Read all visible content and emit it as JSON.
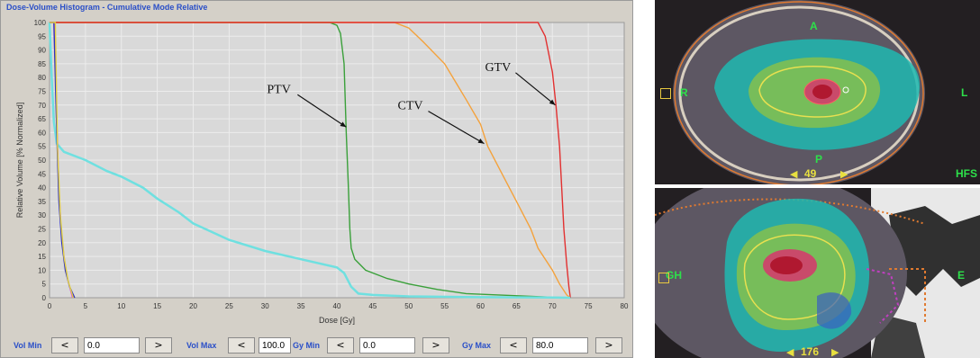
{
  "window": {
    "title": "Dose-Volume Histogram - Cumulative Mode Relative"
  },
  "colors": {
    "plot_bg": "#d9d9d9",
    "grid": "#ececec",
    "ptv": "#3aa03a",
    "ctv": "#f4a23c",
    "gtv": "#e23030",
    "body": "#6fe0e0",
    "other1": "#e040e0",
    "other2": "#3030c0",
    "accent_label": "#2a4fc8"
  },
  "chart_data": {
    "type": "line",
    "title": "Dose-Volume Histogram - Cumulative Mode Relative",
    "xlabel": "Dose [Gy]",
    "ylabel": "Relative Volume [% Normalized]",
    "xlim": [
      0,
      80
    ],
    "ylim": [
      0,
      100
    ],
    "xticks": [
      0,
      5,
      10,
      15,
      20,
      25,
      30,
      35,
      40,
      45,
      50,
      55,
      60,
      65,
      70,
      75,
      80
    ],
    "yticks": [
      0,
      5,
      10,
      15,
      20,
      25,
      30,
      35,
      40,
      45,
      50,
      55,
      60,
      65,
      70,
      75,
      80,
      85,
      90,
      95,
      100
    ],
    "grid": true,
    "series": [
      {
        "name": "PTV",
        "color": "#3aa03a",
        "x": [
          0,
          39,
          40,
          40.5,
          41,
          41.3,
          41.6,
          41.8,
          42,
          42.5,
          44,
          47,
          50,
          54,
          58,
          70,
          72.5
        ],
        "y": [
          100,
          100,
          99,
          96,
          85,
          60,
          40,
          25,
          18,
          14,
          10,
          7,
          5,
          3,
          1.5,
          0.2,
          0
        ]
      },
      {
        "name": "CTV",
        "color": "#f4a23c",
        "x": [
          0,
          48,
          50,
          52,
          55,
          58,
          60,
          61,
          63,
          65,
          67,
          68,
          70,
          71,
          72,
          72.5
        ],
        "y": [
          100,
          100,
          98,
          93,
          85,
          72,
          63,
          55,
          45,
          35,
          25,
          18,
          10,
          5,
          1,
          0
        ]
      },
      {
        "name": "GTV",
        "color": "#e23030",
        "x": [
          0,
          68,
          69,
          70,
          70.5,
          71,
          71.3,
          71.6,
          72,
          72.3,
          72.5
        ],
        "y": [
          100,
          100,
          95,
          82,
          70,
          55,
          40,
          25,
          12,
          4,
          0
        ]
      },
      {
        "name": "",
        "color": "#6fe0e0",
        "x": [
          0,
          0.3,
          0.6,
          1,
          2,
          5,
          8,
          10,
          13,
          15,
          18,
          20,
          25,
          30,
          35,
          40,
          41,
          42,
          43,
          45,
          50,
          60,
          70,
          72.5
        ],
        "y": [
          100,
          80,
          64,
          56,
          53,
          50,
          46,
          44,
          40,
          36,
          31,
          27,
          21,
          17,
          14,
          11,
          9,
          4,
          1.5,
          1,
          0.5,
          0.2,
          0.1,
          0
        ]
      },
      {
        "name": "",
        "color": "#e040e0",
        "x": [
          0,
          0.7,
          1,
          1.3,
          1.6,
          2,
          2.5,
          3.2
        ],
        "y": [
          100,
          100,
          65,
          40,
          25,
          15,
          7,
          0
        ]
      },
      {
        "name": "",
        "color": "#3030c0",
        "x": [
          0,
          0.6,
          1,
          1.3,
          1.7,
          2.2,
          2.8,
          3.5
        ],
        "y": [
          100,
          100,
          60,
          35,
          20,
          10,
          4,
          0
        ]
      },
      {
        "name": "",
        "color": "#e0d040",
        "x": [
          0,
          0.8,
          1.1,
          1.5,
          2,
          2.6,
          3.3
        ],
        "y": [
          100,
          100,
          55,
          30,
          15,
          6,
          0
        ]
      }
    ],
    "annotations": [
      {
        "text": "PTV",
        "target_x": 41.3,
        "target_y": 62
      },
      {
        "text": "CTV",
        "target_x": 60.5,
        "target_y": 56
      },
      {
        "text": "GTV",
        "target_x": 70.4,
        "target_y": 70
      }
    ]
  },
  "controls": [
    {
      "label": "Vol Min",
      "value": "0.0",
      "dec": "<",
      "inc": ">"
    },
    {
      "label": "Vol Max",
      "value": "100.0",
      "dec": "<",
      "inc": ">"
    },
    {
      "label": "Gy Min",
      "value": "0.0",
      "dec": "<",
      "inc": ">"
    },
    {
      "label": "Gy Max",
      "value": "80.0",
      "dec": "<",
      "inc": ">"
    }
  ],
  "scans": {
    "top": {
      "labels": {
        "anterior": "A",
        "right": "R",
        "left": "L",
        "posterior": "P",
        "orientation": "HFS"
      },
      "slice_number": "49",
      "nav_prev": "◀",
      "nav_next": "▶"
    },
    "bottom": {
      "labels": {
        "left_edge": "GH",
        "right_edge": "E"
      },
      "slice_number": "176",
      "nav_prev": "◀",
      "nav_next": "▶"
    }
  }
}
